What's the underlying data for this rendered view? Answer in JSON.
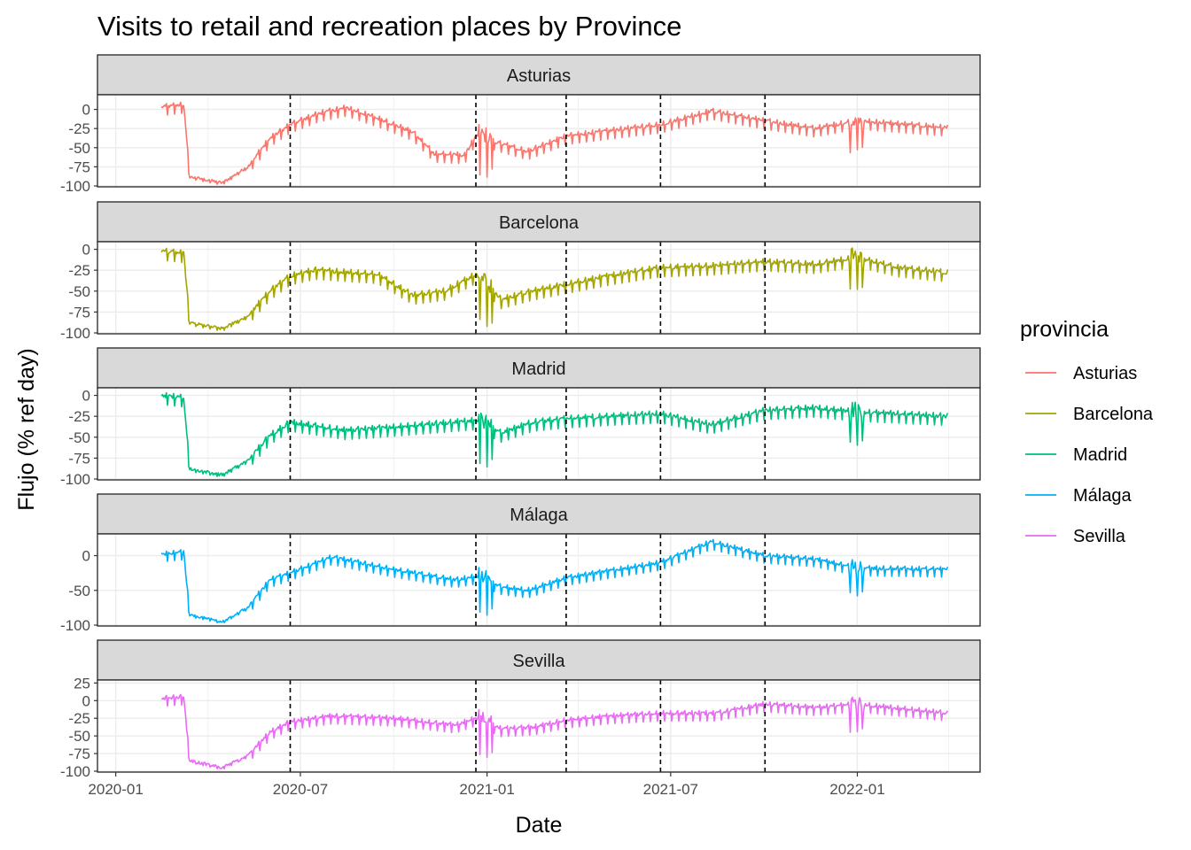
{
  "chart_data": {
    "type": "line",
    "title": "Visits to retail and recreation places by Province",
    "xlabel": "Date",
    "ylabel": "Flujo (% ref day)",
    "x_ticks": [
      "2020-01",
      "2020-07",
      "2021-01",
      "2021-07",
      "2022-01"
    ],
    "x_range": [
      "2019-12-14",
      "2022-05-02"
    ],
    "date_range": [
      "2020-02-15",
      "2022-03-31"
    ],
    "reference_lines": [
      "2020-06-21",
      "2020-12-21",
      "2021-03-20",
      "2021-06-21",
      "2021-10-02"
    ],
    "legend_title": "provincia",
    "legend_position": "right",
    "grid": true,
    "series": [
      {
        "name": "Asturias",
        "color": "#F8766D",
        "ylim": [
          -100,
          18
        ],
        "y_ticks": [
          "0",
          "-25",
          "-50",
          "-75",
          "-100"
        ],
        "keypoints": [
          [
            "2020-02-15",
            3
          ],
          [
            "2020-03-08",
            6
          ],
          [
            "2020-03-14",
            -88
          ],
          [
            "2020-04-15",
            -96
          ],
          [
            "2020-05-10",
            -75
          ],
          [
            "2020-06-01",
            -38
          ],
          [
            "2020-06-21",
            -20
          ],
          [
            "2020-07-20",
            -5
          ],
          [
            "2020-08-15",
            2
          ],
          [
            "2020-09-20",
            -14
          ],
          [
            "2020-10-20",
            -30
          ],
          [
            "2020-11-10",
            -58
          ],
          [
            "2020-12-10",
            -60
          ],
          [
            "2020-12-21",
            -35
          ],
          [
            "2021-01-15",
            -45
          ],
          [
            "2021-02-10",
            -55
          ],
          [
            "2021-03-20",
            -35
          ],
          [
            "2021-05-01",
            -28
          ],
          [
            "2021-06-21",
            -20
          ],
          [
            "2021-08-10",
            -2
          ],
          [
            "2021-10-02",
            -15
          ],
          [
            "2021-11-20",
            -25
          ],
          [
            "2022-01-01",
            -15
          ],
          [
            "2022-03-31",
            -24
          ]
        ]
      },
      {
        "name": "Barcelona",
        "color": "#A3A500",
        "ylim": [
          -100,
          8
        ],
        "y_ticks": [
          "0",
          "-25",
          "-50",
          "-75",
          "-100"
        ],
        "keypoints": [
          [
            "2020-02-15",
            -2
          ],
          [
            "2020-03-08",
            -5
          ],
          [
            "2020-03-14",
            -88
          ],
          [
            "2020-04-15",
            -95
          ],
          [
            "2020-05-10",
            -80
          ],
          [
            "2020-06-01",
            -50
          ],
          [
            "2020-06-21",
            -32
          ],
          [
            "2020-07-15",
            -25
          ],
          [
            "2020-09-15",
            -30
          ],
          [
            "2020-10-20",
            -55
          ],
          [
            "2020-11-20",
            -50
          ],
          [
            "2020-12-21",
            -30
          ],
          [
            "2021-01-15",
            -60
          ],
          [
            "2021-02-15",
            -50
          ],
          [
            "2021-03-20",
            -42
          ],
          [
            "2021-05-01",
            -32
          ],
          [
            "2021-06-21",
            -22
          ],
          [
            "2021-08-10",
            -20
          ],
          [
            "2021-10-02",
            -15
          ],
          [
            "2021-11-20",
            -18
          ],
          [
            "2022-01-01",
            -10
          ],
          [
            "2022-02-10",
            -22
          ],
          [
            "2022-03-31",
            -28
          ]
        ]
      },
      {
        "name": "Madrid",
        "color": "#00BF7D",
        "ylim": [
          -100,
          8
        ],
        "y_ticks": [
          "0",
          "-25",
          "-50",
          "-75",
          "-100"
        ],
        "keypoints": [
          [
            "2020-02-15",
            0
          ],
          [
            "2020-03-08",
            -3
          ],
          [
            "2020-03-14",
            -88
          ],
          [
            "2020-04-15",
            -95
          ],
          [
            "2020-05-10",
            -78
          ],
          [
            "2020-06-01",
            -48
          ],
          [
            "2020-06-21",
            -32
          ],
          [
            "2020-08-15",
            -42
          ],
          [
            "2020-10-01",
            -38
          ],
          [
            "2020-12-21",
            -30
          ],
          [
            "2021-01-15",
            -45
          ],
          [
            "2021-02-15",
            -32
          ],
          [
            "2021-03-20",
            -28
          ],
          [
            "2021-05-01",
            -25
          ],
          [
            "2021-06-21",
            -22
          ],
          [
            "2021-08-10",
            -35
          ],
          [
            "2021-10-02",
            -18
          ],
          [
            "2021-11-20",
            -15
          ],
          [
            "2022-01-01",
            -20
          ],
          [
            "2022-03-31",
            -25
          ]
        ]
      },
      {
        "name": "Málaga",
        "color": "#00B0F6",
        "ylim": [
          -100,
          30
        ],
        "y_ticks": [
          "0",
          "-50",
          "-100"
        ],
        "keypoints": [
          [
            "2020-02-15",
            2
          ],
          [
            "2020-03-08",
            5
          ],
          [
            "2020-03-14",
            -85
          ],
          [
            "2020-04-15",
            -95
          ],
          [
            "2020-05-10",
            -75
          ],
          [
            "2020-06-01",
            -35
          ],
          [
            "2020-06-21",
            -25
          ],
          [
            "2020-08-01",
            -2
          ],
          [
            "2020-10-01",
            -20
          ],
          [
            "2020-12-01",
            -35
          ],
          [
            "2020-12-21",
            -30
          ],
          [
            "2021-01-15",
            -45
          ],
          [
            "2021-02-10",
            -50
          ],
          [
            "2021-03-20",
            -32
          ],
          [
            "2021-05-01",
            -22
          ],
          [
            "2021-06-21",
            -10
          ],
          [
            "2021-08-10",
            20
          ],
          [
            "2021-10-02",
            0
          ],
          [
            "2021-11-20",
            -5
          ],
          [
            "2022-01-01",
            -18
          ],
          [
            "2022-03-31",
            -20
          ]
        ]
      },
      {
        "name": "Sevilla",
        "color": "#E76BF3",
        "ylim": [
          -100,
          28
        ],
        "y_ticks": [
          "25",
          "0",
          "-25",
          "-50",
          "-75",
          "-100"
        ],
        "keypoints": [
          [
            "2020-02-15",
            3
          ],
          [
            "2020-03-08",
            5
          ],
          [
            "2020-03-14",
            -85
          ],
          [
            "2020-04-15",
            -95
          ],
          [
            "2020-05-10",
            -78
          ],
          [
            "2020-06-01",
            -45
          ],
          [
            "2020-06-21",
            -30
          ],
          [
            "2020-08-01",
            -22
          ],
          [
            "2020-10-01",
            -25
          ],
          [
            "2020-12-01",
            -35
          ],
          [
            "2020-12-21",
            -25
          ],
          [
            "2021-01-15",
            -40
          ],
          [
            "2021-02-15",
            -38
          ],
          [
            "2021-03-20",
            -28
          ],
          [
            "2021-05-01",
            -22
          ],
          [
            "2021-06-21",
            -18
          ],
          [
            "2021-08-15",
            -18
          ],
          [
            "2021-10-02",
            -5
          ],
          [
            "2021-11-20",
            -10
          ],
          [
            "2022-01-01",
            -5
          ],
          [
            "2022-03-31",
            -18
          ]
        ]
      }
    ]
  }
}
